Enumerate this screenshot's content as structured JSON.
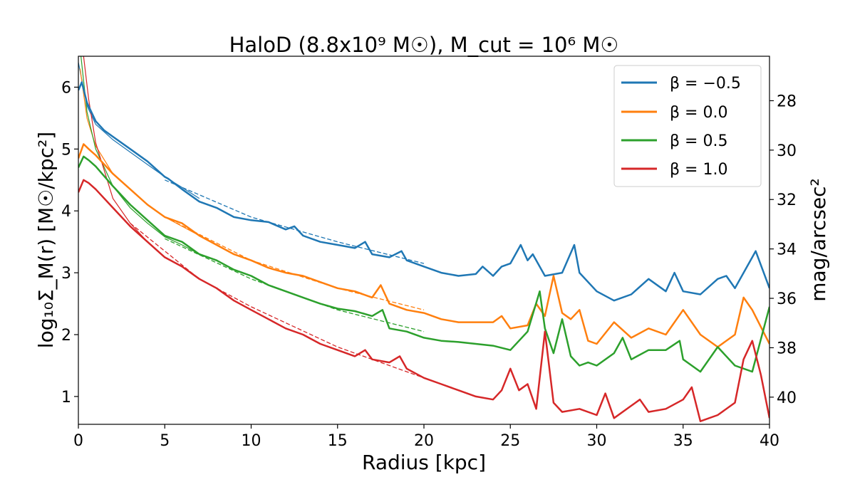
{
  "chart_data": {
    "type": "line",
    "title": "HaloD (8.8x10⁹ M☉), M_cut = 10⁶ M☉",
    "xlabel": "Radius [kpc]",
    "ylabel": "log₁₀Σ_M(r) [M☉/kpc²]",
    "ylabel_right": "mag/arcsec²",
    "xlim": [
      0,
      40
    ],
    "ylim": [
      0.55,
      6.5
    ],
    "ylim_right": [
      41.1,
      26.2
    ],
    "xticks": [
      "0",
      "5",
      "10",
      "15",
      "20",
      "25",
      "30",
      "35",
      "40"
    ],
    "yticks": [
      "1",
      "2",
      "3",
      "4",
      "5",
      "6"
    ],
    "yticks_right": [
      "28",
      "30",
      "32",
      "34",
      "36",
      "38",
      "40"
    ],
    "legend_position": "top-right",
    "grid": false,
    "series": [
      {
        "name": "β = −0.5",
        "color": "#1f77b4",
        "x": [
          0,
          0.2,
          0.5,
          1,
          1.5,
          2,
          3,
          4,
          5,
          5.2,
          6,
          7,
          8,
          9,
          10,
          11,
          12,
          12.5,
          13,
          14,
          15,
          16,
          16.6,
          17,
          18,
          18.7,
          19,
          20,
          21,
          22,
          23,
          23.4,
          24,
          24.5,
          25,
          25.6,
          26,
          26.3,
          27,
          28,
          28.7,
          29,
          30,
          31,
          32,
          33,
          34,
          34.5,
          35,
          36,
          37,
          37.5,
          38,
          39,
          39.2,
          40
        ],
        "y": [
          5.95,
          6.08,
          5.75,
          5.45,
          5.3,
          5.2,
          5.0,
          4.8,
          4.55,
          4.52,
          4.35,
          4.15,
          4.05,
          3.9,
          3.85,
          3.82,
          3.7,
          3.75,
          3.6,
          3.5,
          3.45,
          3.4,
          3.5,
          3.3,
          3.25,
          3.35,
          3.2,
          3.1,
          3.0,
          2.95,
          2.98,
          3.1,
          2.95,
          3.1,
          3.15,
          3.45,
          3.2,
          3.3,
          2.95,
          3.0,
          3.45,
          3.0,
          2.7,
          2.55,
          2.65,
          2.9,
          2.7,
          3.0,
          2.7,
          2.65,
          2.9,
          2.95,
          2.75,
          3.25,
          3.35,
          2.75
        ]
      },
      {
        "name": "β = 0.0",
        "color": "#ff7f0e",
        "x": [
          0,
          0.3,
          0.6,
          1,
          2,
          3,
          4,
          5,
          6,
          7,
          8,
          9,
          10,
          11,
          12,
          13,
          14,
          15,
          16,
          17,
          17.5,
          18,
          19,
          20,
          21,
          22,
          23,
          24,
          24.5,
          25,
          26,
          26.5,
          27,
          27.5,
          28,
          28.5,
          29,
          29.5,
          30,
          31,
          32,
          33,
          34,
          35,
          36,
          37,
          38,
          38.5,
          39,
          40
        ],
        "y": [
          4.85,
          5.08,
          5.0,
          4.9,
          4.6,
          4.35,
          4.1,
          3.9,
          3.8,
          3.6,
          3.45,
          3.3,
          3.2,
          3.08,
          3.0,
          2.95,
          2.85,
          2.75,
          2.7,
          2.6,
          2.8,
          2.5,
          2.4,
          2.35,
          2.25,
          2.2,
          2.2,
          2.2,
          2.3,
          2.1,
          2.15,
          2.5,
          2.3,
          2.95,
          2.35,
          2.25,
          2.4,
          1.9,
          1.85,
          2.2,
          1.95,
          2.1,
          2.0,
          2.4,
          2.0,
          1.8,
          2.0,
          2.6,
          2.4,
          1.85
        ]
      },
      {
        "name": "β = 0.5",
        "color": "#2ca02c",
        "x": [
          0,
          0.3,
          0.6,
          1,
          2,
          3,
          4,
          5,
          6,
          7,
          8,
          9,
          10,
          11,
          12,
          13,
          14,
          15,
          16,
          17,
          17.6,
          18,
          19,
          20,
          21,
          22,
          23,
          24,
          25,
          26,
          26.7,
          27,
          27.5,
          28,
          28.5,
          29,
          29.5,
          30,
          31,
          31.5,
          32,
          33,
          34,
          34.8,
          35,
          36,
          37,
          38,
          39,
          40
        ],
        "y": [
          4.7,
          4.88,
          4.82,
          4.72,
          4.4,
          4.1,
          3.85,
          3.6,
          3.5,
          3.3,
          3.2,
          3.05,
          2.95,
          2.8,
          2.7,
          2.6,
          2.5,
          2.42,
          2.38,
          2.3,
          2.4,
          2.1,
          2.05,
          1.95,
          1.9,
          1.88,
          1.85,
          1.82,
          1.75,
          2.05,
          2.7,
          2.1,
          1.7,
          2.25,
          1.65,
          1.5,
          1.55,
          1.5,
          1.7,
          1.95,
          1.6,
          1.75,
          1.75,
          1.9,
          1.6,
          1.4,
          1.8,
          1.5,
          1.4,
          2.45
        ]
      },
      {
        "name": "β = 1.0",
        "color": "#d62728",
        "x": [
          0,
          0.3,
          0.6,
          1,
          2,
          3,
          4,
          5,
          6,
          7,
          8,
          9,
          10,
          11,
          12,
          13,
          14,
          15,
          16,
          16.6,
          17,
          18,
          18.6,
          19,
          20,
          21,
          22,
          23,
          24,
          24.5,
          25,
          25.5,
          26,
          26.5,
          27,
          27.5,
          28,
          29,
          30,
          30.5,
          31,
          32,
          32.5,
          33,
          34,
          35,
          35.5,
          36,
          37,
          38,
          38.5,
          39,
          39.5,
          40
        ],
        "y": [
          4.3,
          4.5,
          4.45,
          4.35,
          4.05,
          3.75,
          3.5,
          3.25,
          3.1,
          2.9,
          2.75,
          2.55,
          2.4,
          2.25,
          2.1,
          2.0,
          1.85,
          1.75,
          1.65,
          1.75,
          1.6,
          1.55,
          1.65,
          1.45,
          1.3,
          1.2,
          1.1,
          1.0,
          0.95,
          1.1,
          1.45,
          1.1,
          1.2,
          0.8,
          2.05,
          0.9,
          0.75,
          0.8,
          0.7,
          1.05,
          0.65,
          0.85,
          0.95,
          0.75,
          0.8,
          0.95,
          1.15,
          0.6,
          0.7,
          0.9,
          1.6,
          1.9,
          1.35,
          0.65
        ]
      }
    ],
    "fit_curves": [
      {
        "color": "#1f77b4",
        "x": [
          5,
          10,
          15,
          20
        ],
        "y": [
          4.5,
          3.9,
          3.5,
          3.15
        ]
      },
      {
        "color": "#ff7f0e",
        "x": [
          5,
          10,
          15,
          20
        ],
        "y": [
          3.9,
          3.2,
          2.75,
          2.4
        ]
      },
      {
        "color": "#2ca02c",
        "x": [
          5,
          10,
          15,
          20
        ],
        "y": [
          3.55,
          2.9,
          2.4,
          2.05
        ]
      },
      {
        "color": "#d62728",
        "x": [
          3,
          7,
          10,
          15,
          20
        ],
        "y": [
          3.8,
          2.9,
          2.45,
          1.8,
          1.3
        ]
      }
    ],
    "model_curves": [
      {
        "color": "#1f77b4",
        "x": [
          0,
          0.5,
          1,
          2,
          3,
          4,
          5,
          6,
          7
        ],
        "y": [
          6.4,
          5.7,
          5.4,
          5.15,
          4.95,
          4.75,
          4.55,
          4.38,
          4.2
        ]
      },
      {
        "color": "#ff7f0e",
        "x": [
          0.1,
          0.5,
          1,
          2,
          3,
          4,
          5,
          6,
          7
        ],
        "y": [
          6.3,
          5.5,
          5.05,
          4.6,
          4.35,
          4.1,
          3.9,
          3.75,
          3.6
        ]
      },
      {
        "color": "#2ca02c",
        "x": [
          0.15,
          0.5,
          1,
          2,
          3,
          4,
          5,
          6,
          7
        ],
        "y": [
          6.5,
          5.6,
          5.0,
          4.4,
          4.05,
          3.8,
          3.58,
          3.45,
          3.3
        ]
      },
      {
        "color": "#d62728",
        "x": [
          0.3,
          0.6,
          1,
          2,
          3,
          4,
          5,
          6,
          7,
          8,
          9,
          10
        ],
        "y": [
          6.5,
          5.8,
          5.1,
          4.2,
          3.8,
          3.5,
          3.25,
          3.1,
          2.9,
          2.75,
          2.55,
          2.4
        ]
      }
    ]
  }
}
